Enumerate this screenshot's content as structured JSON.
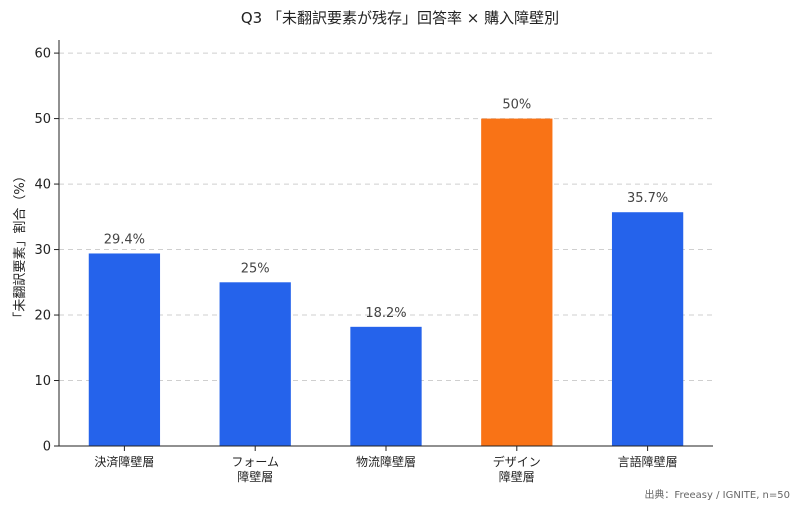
{
  "chart_data": {
    "type": "bar",
    "title": "Q3 「未翻訳要素が残存」回答率 × 購入障壁別",
    "xlabel": "",
    "ylabel": "「未翻訳要素」割合（%）",
    "ylim": [
      0,
      62
    ],
    "yticks": [
      "0",
      "10",
      "20",
      "30",
      "40",
      "50",
      "60"
    ],
    "grid": true,
    "categories": [
      [
        "決済障壁層"
      ],
      [
        "フォーム",
        "障壁層"
      ],
      [
        "物流障壁層"
      ],
      [
        "デザイン",
        "障壁層"
      ],
      [
        "言語障壁層"
      ]
    ],
    "values": [
      29.4,
      25,
      18.2,
      50,
      35.7
    ],
    "value_labels": [
      "29.4%",
      "25%",
      "18.2%",
      "50%",
      "35.7%"
    ],
    "colors": [
      "#2563eb",
      "#2563eb",
      "#2563eb",
      "#f97316",
      "#2563eb"
    ],
    "source": "出典：Freeasy / IGNITE, n=50"
  }
}
